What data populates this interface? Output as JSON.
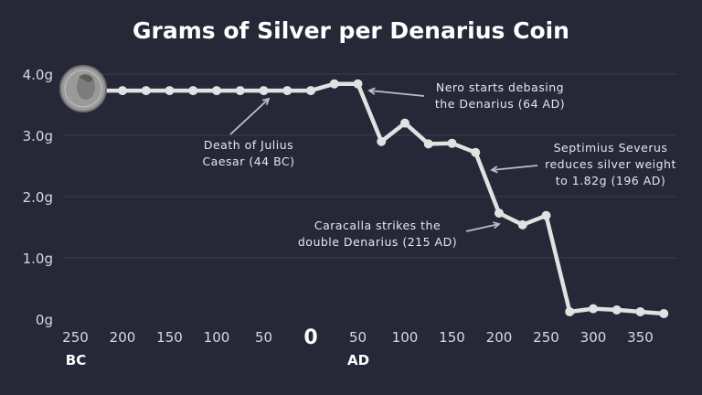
{
  "chart_data": {
    "type": "line",
    "title": "Grams of Silver per Denarius Coin",
    "xlabel": "",
    "ylabel": "",
    "x_ticks": [
      "250",
      "200",
      "150",
      "100",
      "50",
      "0",
      "50",
      "100",
      "150",
      "200",
      "250",
      "300",
      "350"
    ],
    "x_tick_values": [
      -250,
      -200,
      -150,
      -100,
      -50,
      0,
      50,
      100,
      150,
      200,
      250,
      300,
      350
    ],
    "era_labels": {
      "bc": "BC",
      "ad": "AD"
    },
    "y_ticks": [
      "0g",
      "1.0g",
      "2.0g",
      "3.0g",
      "4.0g"
    ],
    "y_tick_values": [
      0,
      1,
      2,
      3,
      4
    ],
    "xlim": [
      -250,
      375
    ],
    "ylim": [
      0,
      4
    ],
    "grid": "horizontal",
    "line_color": "#e2e2e2",
    "background": "#262838",
    "series": [
      {
        "x": [
          -200,
          -175,
          -150,
          -125,
          -100,
          -75,
          -50,
          -25,
          0,
          25,
          50,
          75,
          100,
          125,
          150,
          175,
          200,
          225,
          250,
          275,
          300,
          325,
          350,
          375
        ],
        "y": [
          3.73,
          3.73,
          3.73,
          3.73,
          3.73,
          3.73,
          3.73,
          3.73,
          3.73,
          3.84,
          3.84,
          2.9,
          3.2,
          2.86,
          2.87,
          2.72,
          1.73,
          1.54,
          1.69,
          0.12,
          0.17,
          0.15,
          0.12,
          0.09
        ]
      }
    ],
    "annotations": [
      {
        "lines": [
          "Death of Julius",
          "Caesar (44 BC)"
        ],
        "x": -44
      },
      {
        "lines": [
          "Nero starts debasing",
          "the Denarius (64 AD)"
        ],
        "x": 64
      },
      {
        "lines": [
          "Septimius Severus",
          "reduces silver weight",
          "to 1.82g (196 AD)"
        ],
        "x": 196
      },
      {
        "lines": [
          "Caracalla strikes the",
          "double Denarius (215 AD)"
        ],
        "x": 215
      }
    ],
    "image": "denarius-coin"
  }
}
